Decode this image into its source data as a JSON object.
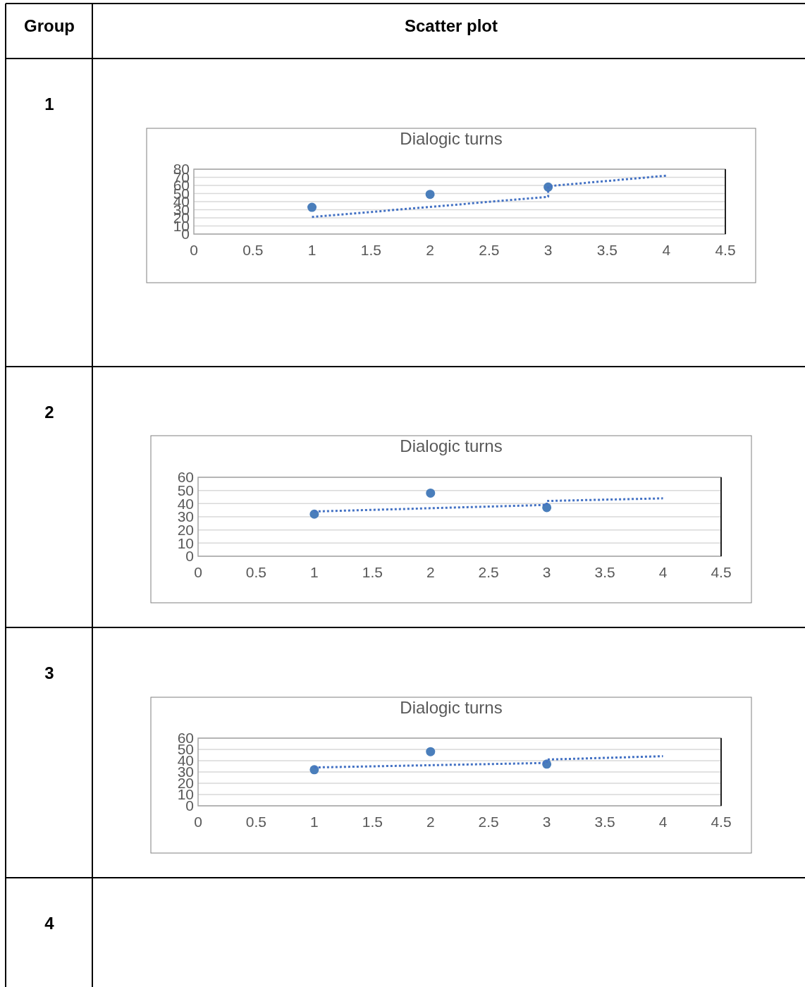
{
  "chart_data": [
    {
      "type": "scatter",
      "title": "Dialogic turns",
      "annotations": [
        "Group",
        "Scatter plot",
        "1"
      ],
      "xlim": [
        0,
        4.5
      ],
      "xticks": [
        0,
        0.5,
        1,
        1.5,
        2,
        2.5,
        3,
        3.5,
        4,
        4.5
      ],
      "ylim": [
        0,
        80
      ],
      "yticks": [
        0,
        10,
        20,
        30,
        40,
        50,
        60,
        70,
        80
      ],
      "grid": "y",
      "marker": "circle",
      "series": [
        {
          "type": "scatter",
          "color": "#4a7ebb",
          "x": [
            1,
            2,
            3
          ],
          "values": [
            33,
            49,
            58
          ]
        },
        {
          "type": "line",
          "color": "#4472c4",
          "line_style": "dotted",
          "marker": "none",
          "x": [
            1,
            3,
            3,
            4
          ],
          "values": [
            21,
            46,
            59,
            72
          ]
        }
      ]
    },
    {
      "type": "scatter",
      "title": "Dialogic turns",
      "annotations": [
        "2"
      ],
      "xlim": [
        0,
        4.5
      ],
      "xticks": [
        0,
        0.5,
        1,
        1.5,
        2,
        2.5,
        3,
        3.5,
        4,
        4.5
      ],
      "ylim": [
        0,
        60
      ],
      "yticks": [
        0,
        10,
        20,
        30,
        40,
        50,
        60
      ],
      "grid": "y",
      "marker": "circle",
      "series": [
        {
          "type": "scatter",
          "color": "#4a7ebb",
          "x": [
            1,
            2,
            3
          ],
          "values": [
            32,
            48,
            37
          ]
        },
        {
          "type": "line",
          "color": "#4472c4",
          "line_style": "dotted",
          "marker": "none",
          "x": [
            1,
            3,
            3,
            4
          ],
          "values": [
            34,
            39,
            42,
            44
          ]
        }
      ]
    },
    {
      "type": "scatter",
      "title": "Dialogic turns",
      "annotations": [
        "3"
      ],
      "xlim": [
        0,
        4.5
      ],
      "xticks": [
        0,
        0.5,
        1,
        1.5,
        2,
        2.5,
        3,
        3.5,
        4,
        4.5
      ],
      "ylim": [
        0,
        60
      ],
      "yticks": [
        0,
        10,
        20,
        30,
        40,
        50,
        60
      ],
      "grid": "y",
      "marker": "circle",
      "series": [
        {
          "type": "scatter",
          "color": "#4a7ebb",
          "x": [
            1,
            2,
            3
          ],
          "values": [
            32,
            48,
            37
          ]
        },
        {
          "type": "line",
          "color": "#4472c4",
          "line_style": "dotted",
          "marker": "none",
          "x": [
            1,
            3,
            3,
            4
          ],
          "values": [
            34,
            38,
            41,
            44
          ]
        }
      ]
    },
    {
      "type": "other",
      "annotations": [
        "4"
      ]
    }
  ]
}
